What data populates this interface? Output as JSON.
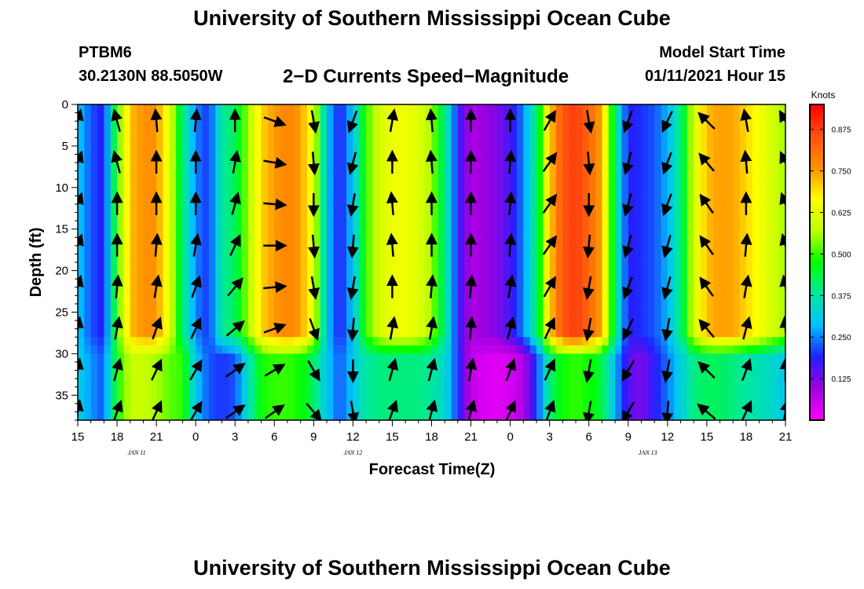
{
  "header": {
    "title": "University of Southern Mississippi Ocean Cube",
    "station": "PTBM6",
    "coords": "30.2130N 88.5050W",
    "subtitle": "2−D Currents Speed−Magnitude",
    "model_start_label": "Model Start Time",
    "model_start_value": "01/11/2021 Hour 15"
  },
  "footer": {
    "title": "University of Southern Mississippi Ocean Cube"
  },
  "colors": {
    "scale": [
      "#ff00ff",
      "#a000e0",
      "#2020ff",
      "#00c0ff",
      "#00e8a0",
      "#00ff00",
      "#c0ff00",
      "#ffff00",
      "#ff9000",
      "#ff5010",
      "#ff0000"
    ]
  },
  "chart_data": {
    "type": "heatmap",
    "xlabel": "Forecast Time(Z)",
    "ylabel": "Depth (ft)",
    "x_tick_labels": [
      "15",
      "18",
      "21",
      "0",
      "3",
      "6",
      "9",
      "12",
      "15",
      "18",
      "21",
      "0",
      "3",
      "6",
      "9",
      "12",
      "15",
      "18",
      "21"
    ],
    "x_range_hours": [
      0,
      54
    ],
    "date_labels": [
      {
        "hour": 4.5,
        "text": "JAN  11"
      },
      {
        "hour": 21,
        "text": "JAN  12"
      },
      {
        "hour": 43.5,
        "text": "JAN  13"
      }
    ],
    "y_ticks": [
      0,
      5,
      10,
      15,
      20,
      25,
      30,
      35
    ],
    "ylim": [
      0,
      38
    ],
    "colorbar": {
      "title": "Knots",
      "range": [
        0.0,
        0.95
      ],
      "ticks": [
        "0.125",
        "0.250",
        "0.375",
        "0.500",
        "0.625",
        "0.750",
        "0.875"
      ]
    },
    "speed_by_hour": {
      "hours": [
        0,
        1,
        2,
        3,
        4,
        5,
        6,
        7,
        8,
        9,
        10,
        11,
        12,
        13,
        14,
        15,
        16,
        17,
        18,
        19,
        20,
        21,
        22,
        23,
        24,
        25,
        26,
        27,
        28,
        29,
        30,
        31,
        32,
        33,
        34,
        35,
        36,
        37,
        38,
        39,
        40,
        41,
        42,
        43,
        44,
        45,
        46,
        47,
        48,
        49,
        50,
        51,
        52,
        53,
        54
      ],
      "surface": [
        0.3,
        0.22,
        0.18,
        0.5,
        0.72,
        0.76,
        0.76,
        0.62,
        0.4,
        0.25,
        0.2,
        0.38,
        0.42,
        0.55,
        0.7,
        0.75,
        0.78,
        0.75,
        0.62,
        0.3,
        0.18,
        0.3,
        0.5,
        0.6,
        0.64,
        0.64,
        0.62,
        0.55,
        0.4,
        0.18,
        0.08,
        0.1,
        0.12,
        0.16,
        0.25,
        0.4,
        0.7,
        0.85,
        0.88,
        0.82,
        0.74,
        0.4,
        0.18,
        0.2,
        0.22,
        0.28,
        0.4,
        0.6,
        0.72,
        0.75,
        0.74,
        0.7,
        0.65,
        0.6,
        0.55
      ],
      "bottom": [
        0.32,
        0.26,
        0.22,
        0.48,
        0.58,
        0.58,
        0.56,
        0.52,
        0.5,
        0.3,
        0.22,
        0.2,
        0.22,
        0.35,
        0.48,
        0.5,
        0.5,
        0.48,
        0.42,
        0.3,
        0.22,
        0.3,
        0.38,
        0.4,
        0.4,
        0.4,
        0.4,
        0.38,
        0.34,
        0.2,
        0.06,
        0.04,
        0.03,
        0.04,
        0.08,
        0.2,
        0.4,
        0.48,
        0.5,
        0.48,
        0.44,
        0.28,
        0.15,
        0.12,
        0.18,
        0.24,
        0.32,
        0.4,
        0.42,
        0.42,
        0.4,
        0.38,
        0.36,
        0.34,
        0.3
      ],
      "transition_depth_ft": 29
    },
    "vectors": {
      "x_hours": [
        0,
        3,
        6,
        9,
        12,
        15,
        18,
        21,
        24,
        27,
        30,
        33,
        36,
        39,
        42,
        45,
        48,
        51,
        54
      ],
      "depths_ft": [
        2,
        7,
        12,
        17,
        22,
        27,
        32,
        37
      ],
      "angles_deg": [
        [
          15,
          20,
          20,
          20,
          15,
          10,
          10,
          10
        ],
        [
          -15,
          -15,
          0,
          0,
          5,
          10,
          15,
          20
        ],
        [
          -5,
          0,
          0,
          5,
          10,
          20,
          25,
          25
        ],
        [
          5,
          0,
          0,
          10,
          20,
          25,
          30,
          30
        ],
        [
          0,
          10,
          15,
          25,
          40,
          50,
          55,
          55
        ],
        [
          110,
          100,
          95,
          90,
          85,
          70,
          60,
          55
        ],
        [
          170,
          175,
          180,
          175,
          170,
          160,
          150,
          140
        ],
        [
          -160,
          -165,
          -170,
          -175,
          -170,
          -175,
          -180,
          170
        ],
        [
          10,
          0,
          -5,
          -5,
          0,
          10,
          15,
          20
        ],
        [
          -5,
          -5,
          0,
          0,
          5,
          10,
          15,
          15
        ],
        [
          0,
          0,
          0,
          0,
          5,
          5,
          10,
          15
        ],
        [
          0,
          5,
          5,
          5,
          10,
          15,
          20,
          25
        ],
        [
          30,
          35,
          35,
          35,
          30,
          25,
          25,
          20
        ],
        [
          170,
          175,
          180,
          -175,
          -170,
          -170,
          -170,
          -170
        ],
        [
          -160,
          -165,
          -165,
          -165,
          -160,
          -155,
          -150,
          -150
        ],
        [
          -155,
          -160,
          -160,
          -165,
          -165,
          -170,
          -170,
          -175
        ],
        [
          -45,
          -40,
          -35,
          -35,
          -35,
          -40,
          -45,
          -50
        ],
        [
          -10,
          -5,
          0,
          5,
          10,
          15,
          20,
          25
        ],
        [
          -30,
          -25,
          -20,
          -15,
          -10,
          -5,
          0,
          10
        ]
      ]
    }
  }
}
